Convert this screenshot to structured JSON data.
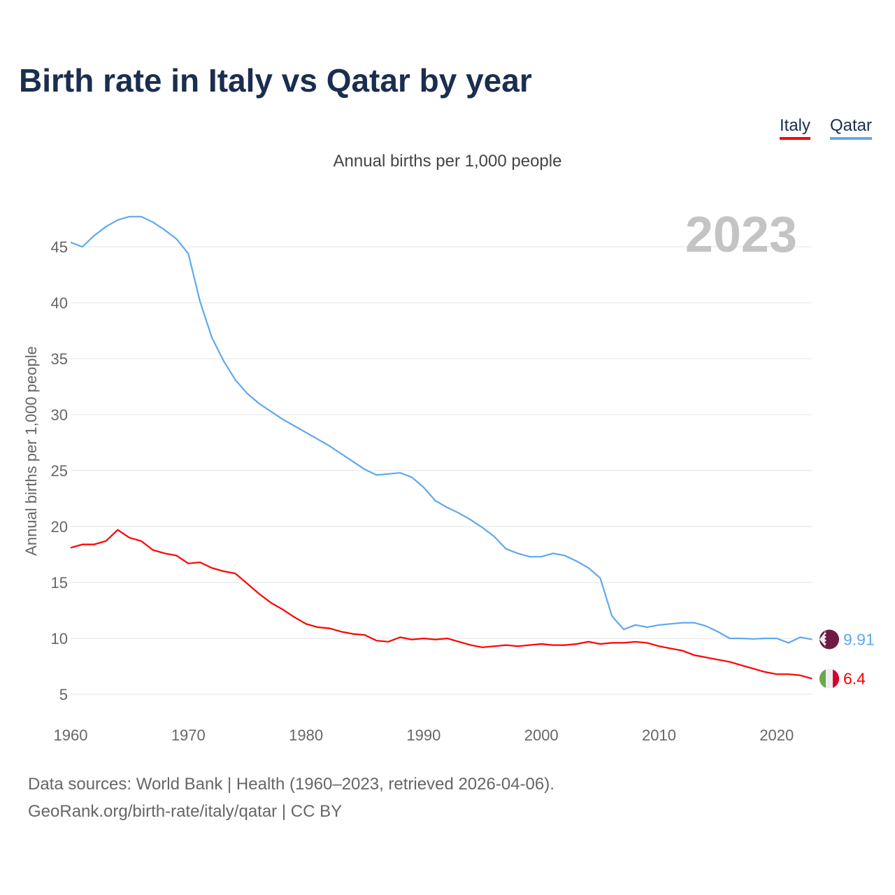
{
  "title": "Birth rate in Italy vs Qatar by year",
  "subtitle": "Annual births per 1,000 people",
  "footer": {
    "line1": "Data sources: World Bank | Health (1960–2023, retrieved 2026-04-06).",
    "line2": "GeoRank.org/birth-rate/italy/qatar | CC BY"
  },
  "chart_data": {
    "type": "line",
    "title": "Birth rate in Italy vs Qatar by year",
    "ylabel": "Annual births per 1,000 people",
    "xlabel": "",
    "year_label": "2023",
    "xlim": [
      1960,
      2023
    ],
    "ylim": [
      5,
      47.7
    ],
    "xticks": [
      1960,
      1970,
      1980,
      1990,
      2000,
      2010,
      2020
    ],
    "yticks": [
      5,
      10,
      15,
      20,
      25,
      30,
      35,
      40,
      45
    ],
    "grid": true,
    "legend_position": "top-right",
    "x_start": 1960,
    "series": [
      {
        "name": "Italy",
        "color": "#ff0000",
        "end_label": "6.4",
        "values": [
          18.1,
          18.4,
          18.4,
          18.7,
          19.7,
          19.0,
          18.7,
          17.9,
          17.6,
          17.4,
          16.7,
          16.8,
          16.3,
          16.0,
          15.8,
          14.9,
          14.0,
          13.2,
          12.6,
          11.9,
          11.3,
          11.0,
          10.9,
          10.6,
          10.4,
          10.3,
          9.8,
          9.7,
          10.1,
          9.9,
          10.0,
          9.9,
          10.0,
          9.7,
          9.4,
          9.2,
          9.3,
          9.4,
          9.3,
          9.4,
          9.5,
          9.4,
          9.4,
          9.5,
          9.7,
          9.5,
          9.6,
          9.6,
          9.7,
          9.6,
          9.3,
          9.1,
          8.9,
          8.5,
          8.3,
          8.1,
          7.9,
          7.6,
          7.3,
          7.0,
          6.8,
          6.8,
          6.7,
          6.4
        ]
      },
      {
        "name": "Qatar",
        "color": "#5fa8ee",
        "end_label": "9.91",
        "values": [
          45.4,
          45.0,
          46.0,
          46.8,
          47.4,
          47.7,
          47.7,
          47.2,
          46.5,
          45.7,
          44.4,
          40.1,
          36.9,
          34.8,
          33.1,
          31.9,
          31.0,
          30.3,
          29.6,
          29.0,
          28.4,
          27.8,
          27.2,
          26.5,
          25.8,
          25.1,
          24.6,
          24.7,
          24.8,
          24.4,
          23.5,
          22.3,
          21.7,
          21.2,
          20.6,
          19.9,
          19.1,
          18.0,
          17.6,
          17.3,
          17.3,
          17.6,
          17.4,
          16.9,
          16.3,
          15.4,
          12.0,
          10.8,
          11.2,
          11.0,
          11.2,
          11.3,
          11.4,
          11.4,
          11.1,
          10.6,
          10.0,
          10.0,
          9.95,
          10.0,
          10.0,
          9.6,
          10.1,
          9.91
        ]
      }
    ]
  }
}
